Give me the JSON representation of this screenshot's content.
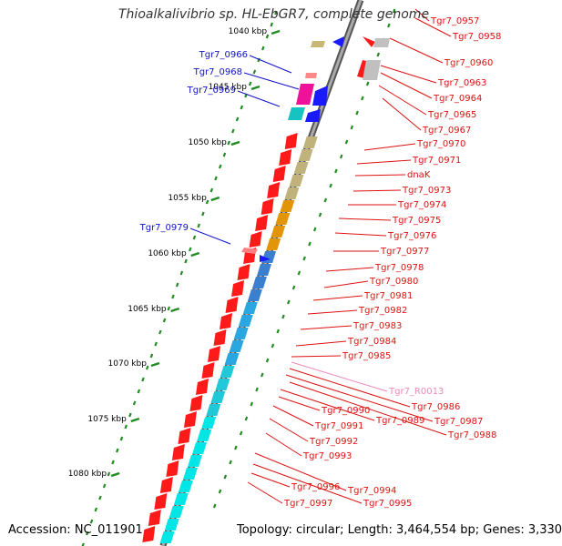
{
  "title": "Thioalkalivibrio sp. HL-EbGR7, complete genome",
  "accession": "Accession: NC_011901",
  "summary": "Topology: circular; Length: 3,464,554 bp; Genes: 3,330",
  "colors": {
    "right_labels": "#dd1111",
    "left_labels": "#1111cc",
    "rna_label": "#ee88bb",
    "backbone": "#888888",
    "ticks": "#228b22"
  },
  "kbp_ticks": [
    "1040 kbp",
    "1045 kbp",
    "1050 kbp",
    "1055 kbp",
    "1060 kbp",
    "1065 kbp",
    "1070 kbp",
    "1075 kbp",
    "1080 kbp"
  ],
  "right_labels": [
    "Tgr7_0957",
    "Tgr7_0958",
    "Tgr7_0960",
    "Tgr7_0963",
    "Tgr7_0964",
    "Tgr7_0965",
    "Tgr7_0967",
    "Tgr7_0970",
    "Tgr7_0971",
    "dnaK",
    "Tgr7_0973",
    "Tgr7_0974",
    "Tgr7_0975",
    "Tgr7_0976",
    "Tgr7_0977",
    "Tgr7_0978",
    "Tgr7_0980",
    "Tgr7_0981",
    "Tgr7_0982",
    "Tgr7_0983",
    "Tgr7_0984",
    "Tgr7_0985",
    "Tgr7_R0013",
    "Tgr7_0986",
    "Tgr7_0987",
    "Tgr7_0988",
    "Tgr7_0989",
    "Tgr7_0990",
    "Tgr7_0991",
    "Tgr7_0992",
    "Tgr7_0993",
    "Tgr7_0994",
    "Tgr7_0995",
    "Tgr7_0996",
    "Tgr7_0997"
  ],
  "left_labels": [
    "Tgr7_0966",
    "Tgr7_0968",
    "Tgr7_0969",
    "Tgr7_0979"
  ],
  "rna_labels": [
    "Tgr7_R0013"
  ]
}
